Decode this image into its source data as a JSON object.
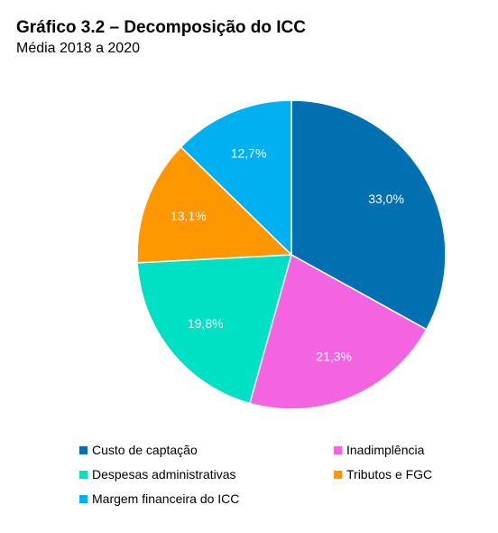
{
  "title": "Gráfico 3.2 – Decomposição do ICC",
  "subtitle": "Média 2018 a 2020",
  "chart_data": {
    "type": "pie",
    "title": "Gráfico 3.2 – Decomposição do ICC",
    "subtitle": "Média 2018 a 2020",
    "unit": "%",
    "start_angle": "12 o'clock",
    "direction": "clockwise",
    "legend_position": "bottom",
    "slices": [
      {
        "name": "Custo de captação",
        "value": 33.0,
        "label": "33,0%",
        "color": "#0070b0"
      },
      {
        "name": "Inadimplência",
        "value": 21.3,
        "label": "21,3%",
        "color": "#f564e0"
      },
      {
        "name": "Despesas administrativas",
        "value": 19.8,
        "label": "19,8%",
        "color": "#00e0c4"
      },
      {
        "name": "Tributos e FGC",
        "value": 13.1,
        "label": "13,1%",
        "color": "#ff9800"
      },
      {
        "name": "Margem financeira do ICC",
        "value": 12.7,
        "label": "12,7%",
        "color": "#00b0f0"
      }
    ]
  }
}
